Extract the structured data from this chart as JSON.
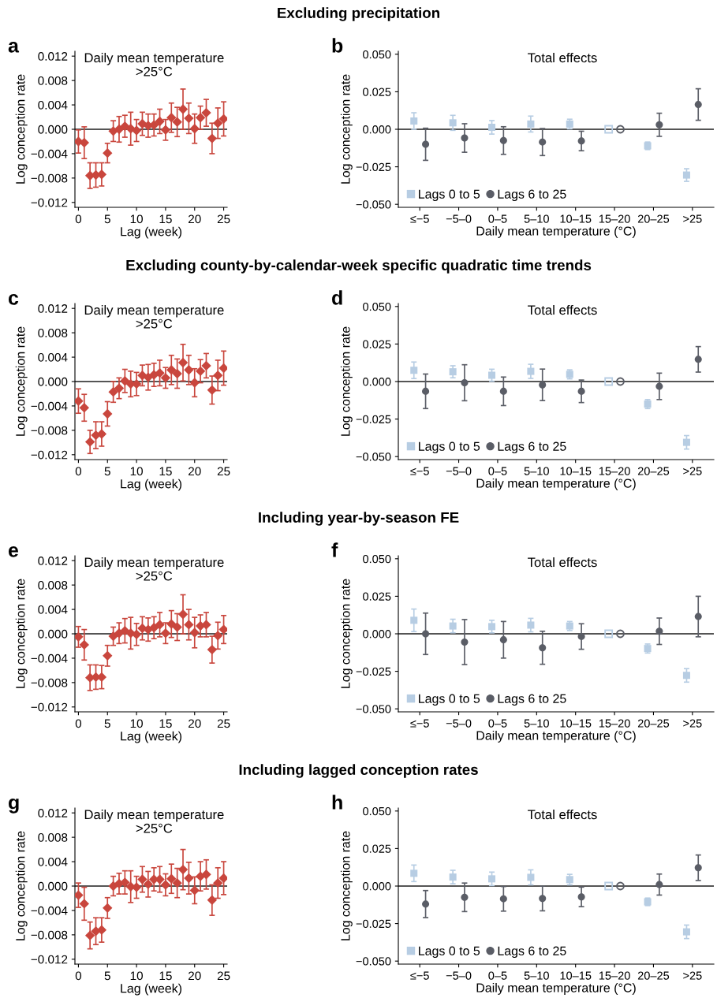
{
  "chart_data": [
    {
      "type": "scatter",
      "title": "Daily mean temperature\n>25°C",
      "xlabel": "Lag (week)",
      "ylabel": "Log conception rate",
      "annotations": [
        "a",
        "Excluding precipitation"
      ],
      "x": [
        0,
        1,
        2,
        3,
        4,
        5,
        6,
        7,
        8,
        9,
        10,
        11,
        12,
        13,
        14,
        15,
        16,
        17,
        18,
        19,
        20,
        21,
        22,
        23,
        24,
        25
      ],
      "series": [
        {
          "color": "#c9463d",
          "marker": "diamond",
          "values": [
            -0.002,
            -0.0022,
            -0.0076,
            -0.0075,
            -0.0074,
            -0.0039,
            -0.0003,
            0.0,
            0.0005,
            0.0001,
            -0.0002,
            0.0009,
            0.0006,
            0.0007,
            0.0013,
            -0.0001,
            0.0019,
            0.0012,
            0.0033,
            0.0018,
            0.0001,
            0.0019,
            0.0027,
            -0.0015,
            0.001,
            0.0017
          ],
          "errors": [
            0.0019,
            0.0026,
            0.0021,
            0.002,
            0.0019,
            0.0016,
            0.0017,
            0.0021,
            0.0018,
            0.0027,
            0.0018,
            0.0019,
            0.0019,
            0.0018,
            0.002,
            0.0017,
            0.0024,
            0.0024,
            0.0033,
            0.0025,
            0.0024,
            0.0019,
            0.0022,
            0.0025,
            0.0025,
            0.0028
          ]
        }
      ],
      "xlim": [
        -0.6,
        25.6
      ],
      "xticks": [
        0,
        5,
        10,
        15,
        20,
        25
      ],
      "ylim": [
        -0.0128,
        0.0128
      ],
      "yticks": [
        {
          "value": -0.012,
          "label": "−0.012"
        },
        {
          "value": -0.008,
          "label": "−0.008"
        },
        {
          "value": -0.004,
          "label": "−0.004"
        },
        {
          "value": 0.0,
          "label": "0.000"
        },
        {
          "value": 0.004,
          "label": "0.004"
        },
        {
          "value": 0.008,
          "label": "0.008"
        },
        {
          "value": 0.012,
          "label": "0.012"
        }
      ],
      "ref_lines": [
        {
          "axis": "y",
          "value": 0,
          "color": "#555555"
        }
      ],
      "grid": false,
      "legend": false
    },
    {
      "type": "scatter",
      "title": "Total effects",
      "xlabel": "Daily mean temperature (°C)",
      "ylabel": "Log conception rate",
      "annotations": [
        "b"
      ],
      "categories": [
        "≤−5",
        "−5–0",
        "0–5",
        "5–10",
        "10–15",
        "15–20",
        "20–25",
        ">25"
      ],
      "series": [
        {
          "name": "Lags 0 to 5",
          "color": "#b7cde3",
          "marker": "square",
          "values": [
            0.0055,
            0.0043,
            0.0013,
            0.0035,
            0.0035,
            0.0,
            -0.011,
            -0.0305
          ],
          "errors": [
            0.0055,
            0.005,
            0.0045,
            0.0053,
            0.0032,
            null,
            0.0025,
            0.0042
          ]
        },
        {
          "name": "Lags 6 to 25",
          "color": "#5a5d66",
          "marker": "circle",
          "values": [
            -0.01,
            -0.0058,
            -0.0075,
            -0.0085,
            -0.0078,
            0.0,
            0.003,
            0.0165
          ],
          "errors": [
            0.0107,
            0.0095,
            0.0092,
            0.009,
            0.0065,
            null,
            0.0077,
            0.0105
          ]
        }
      ],
      "ylim": [
        -0.052,
        0.052
      ],
      "yticks": [
        {
          "value": -0.05,
          "label": "−0.050"
        },
        {
          "value": -0.025,
          "label": "−0.025"
        },
        {
          "value": 0.0,
          "label": "0.000"
        },
        {
          "value": 0.025,
          "label": "0.025"
        },
        {
          "value": 0.05,
          "label": "0.050"
        }
      ],
      "ref_lines": [
        {
          "axis": "y",
          "value": 0,
          "color": "#555555"
        }
      ],
      "grid": false,
      "legend": "bottom left"
    },
    {
      "type": "scatter",
      "title": "Daily mean temperature\n>25°C",
      "xlabel": "Lag (week)",
      "ylabel": "Log conception rate",
      "annotations": [
        "c",
        "Excluding county-by-calendar-week specific quadratic time trends"
      ],
      "x": [
        0,
        1,
        2,
        3,
        4,
        5,
        6,
        7,
        8,
        9,
        10,
        11,
        12,
        13,
        14,
        15,
        16,
        17,
        18,
        19,
        20,
        21,
        22,
        23,
        24,
        25
      ],
      "series": [
        {
          "color": "#c9463d",
          "marker": "diamond",
          "values": [
            -0.0032,
            -0.0043,
            -0.0099,
            -0.0088,
            -0.0086,
            -0.0053,
            -0.0017,
            -0.0011,
            0.0001,
            -0.0004,
            -0.0004,
            0.001,
            0.0007,
            0.0011,
            0.0014,
            0.0006,
            0.0019,
            0.0013,
            0.0031,
            0.0019,
            -0.0002,
            0.0017,
            0.0026,
            -0.0014,
            0.001,
            0.0022
          ],
          "errors": [
            0.002,
            0.0022,
            0.0019,
            0.0022,
            0.002,
            0.002,
            0.0017,
            0.0017,
            0.0019,
            0.0021,
            0.0019,
            0.0017,
            0.0021,
            0.0019,
            0.0021,
            0.0017,
            0.0024,
            0.0024,
            0.003,
            0.0024,
            0.0023,
            0.0019,
            0.002,
            0.0023,
            0.0025,
            0.0028
          ]
        }
      ],
      "xlim": [
        -0.6,
        25.6
      ],
      "xticks": [
        0,
        5,
        10,
        15,
        20,
        25
      ],
      "ylim": [
        -0.0128,
        0.0128
      ],
      "yticks": [
        {
          "value": -0.012,
          "label": "−0.012"
        },
        {
          "value": -0.008,
          "label": "−0.008"
        },
        {
          "value": -0.004,
          "label": "−0.004"
        },
        {
          "value": 0.0,
          "label": "0.000"
        },
        {
          "value": 0.004,
          "label": "0.004"
        },
        {
          "value": 0.008,
          "label": "0.008"
        },
        {
          "value": 0.012,
          "label": "0.012"
        }
      ],
      "ref_lines": [
        {
          "axis": "y",
          "value": 0,
          "color": "#555555"
        }
      ],
      "grid": false,
      "legend": false
    },
    {
      "type": "scatter",
      "title": "Total effects",
      "xlabel": "Daily mean temperature (°C)",
      "ylabel": "Log conception rate",
      "annotations": [
        "d"
      ],
      "categories": [
        "≤−5",
        "−5–0",
        "0–5",
        "5–10",
        "10–15",
        "15–20",
        "20–25",
        ">25"
      ],
      "series": [
        {
          "name": "Lags 0 to 5",
          "color": "#b7cde3",
          "marker": "square",
          "values": [
            0.0075,
            0.0065,
            0.0042,
            0.0068,
            0.0048,
            0.0,
            -0.015,
            -0.0405
          ],
          "errors": [
            0.0055,
            0.004,
            0.004,
            0.0047,
            0.003,
            null,
            0.003,
            0.0045
          ]
        },
        {
          "name": "Lags 6 to 25",
          "color": "#5a5d66",
          "marker": "circle",
          "values": [
            -0.0065,
            -0.0008,
            -0.0065,
            -0.0022,
            -0.0065,
            0.0,
            -0.0032,
            0.0148
          ],
          "errors": [
            0.0115,
            0.012,
            0.0095,
            0.0105,
            0.0075,
            null,
            0.0088,
            0.0085
          ]
        }
      ],
      "ylim": [
        -0.052,
        0.052
      ],
      "yticks": [
        {
          "value": -0.05,
          "label": "−0.050"
        },
        {
          "value": -0.025,
          "label": "−0.025"
        },
        {
          "value": 0.0,
          "label": "0.000"
        },
        {
          "value": 0.025,
          "label": "0.025"
        },
        {
          "value": 0.05,
          "label": "0.050"
        }
      ],
      "ref_lines": [
        {
          "axis": "y",
          "value": 0,
          "color": "#555555"
        }
      ],
      "grid": false,
      "legend": "bottom left"
    },
    {
      "type": "scatter",
      "title": "Daily mean temperature\n>25°C",
      "xlabel": "Lag (week)",
      "ylabel": "Log conception rate",
      "annotations": [
        "e",
        "Including year-by-season FE"
      ],
      "x": [
        0,
        1,
        2,
        3,
        4,
        5,
        6,
        7,
        8,
        9,
        10,
        11,
        12,
        13,
        14,
        15,
        16,
        17,
        18,
        19,
        20,
        21,
        22,
        23,
        24,
        25
      ],
      "series": [
        {
          "color": "#c9463d",
          "marker": "diamond",
          "values": [
            -0.0005,
            -0.0018,
            -0.0072,
            -0.0071,
            -0.0071,
            -0.0036,
            -0.0004,
            0.0001,
            0.0005,
            0.0001,
            -0.0001,
            0.0009,
            0.0007,
            0.001,
            0.0015,
            0.0001,
            0.0016,
            0.0011,
            0.0032,
            0.0015,
            0.0002,
            0.0013,
            0.0015,
            -0.0026,
            -0.0003,
            0.0007
          ],
          "errors": [
            0.0017,
            0.0025,
            0.0021,
            0.002,
            0.0019,
            0.0017,
            0.0015,
            0.0017,
            0.002,
            0.0026,
            0.0018,
            0.0019,
            0.0019,
            0.0018,
            0.002,
            0.0017,
            0.0022,
            0.0022,
            0.0032,
            0.0025,
            0.0025,
            0.0018,
            0.002,
            0.0022,
            0.0022,
            0.0023
          ]
        }
      ],
      "xlim": [
        -0.6,
        25.6
      ],
      "xticks": [
        0,
        5,
        10,
        15,
        20,
        25
      ],
      "ylim": [
        -0.0128,
        0.0128
      ],
      "yticks": [
        {
          "value": -0.012,
          "label": "−0.012"
        },
        {
          "value": -0.008,
          "label": "−0.008"
        },
        {
          "value": -0.004,
          "label": "−0.004"
        },
        {
          "value": 0.0,
          "label": "0.000"
        },
        {
          "value": 0.004,
          "label": "0.004"
        },
        {
          "value": 0.008,
          "label": "0.008"
        },
        {
          "value": 0.012,
          "label": "0.012"
        }
      ],
      "ref_lines": [
        {
          "axis": "y",
          "value": 0,
          "color": "#555555"
        }
      ],
      "grid": false,
      "legend": false
    },
    {
      "type": "scatter",
      "title": "Total effects",
      "xlabel": "Daily mean temperature (°C)",
      "ylabel": "Log conception rate",
      "annotations": [
        "f"
      ],
      "categories": [
        "≤−5",
        "−5–0",
        "0–5",
        "5–10",
        "10–15",
        "15–20",
        "20–25",
        ">25"
      ],
      "series": [
        {
          "name": "Lags 0 to 5",
          "color": "#b7cde3",
          "marker": "square",
          "values": [
            0.009,
            0.0052,
            0.0048,
            0.0058,
            0.0052,
            0.0,
            -0.0098,
            -0.0277
          ],
          "errors": [
            0.0075,
            0.0045,
            0.0042,
            0.0045,
            0.003,
            null,
            0.003,
            0.0045
          ]
        },
        {
          "name": "Lags 6 to 25",
          "color": "#5a5d66",
          "marker": "circle",
          "values": [
            0.0,
            -0.0055,
            -0.004,
            -0.0093,
            -0.0018,
            0.0,
            0.0017,
            0.0115
          ],
          "errors": [
            0.0138,
            0.015,
            0.0122,
            0.011,
            0.0085,
            null,
            0.0088,
            0.0135
          ]
        }
      ],
      "ylim": [
        -0.052,
        0.052
      ],
      "yticks": [
        {
          "value": -0.05,
          "label": "−0.050"
        },
        {
          "value": -0.025,
          "label": "−0.025"
        },
        {
          "value": 0.0,
          "label": "0.000"
        },
        {
          "value": 0.025,
          "label": "0.025"
        },
        {
          "value": 0.05,
          "label": "0.050"
        }
      ],
      "ref_lines": [
        {
          "axis": "y",
          "value": 0,
          "color": "#555555"
        }
      ],
      "grid": false,
      "legend": "bottom left"
    },
    {
      "type": "scatter",
      "title": "Daily mean temperature\n>25°C",
      "xlabel": "Lag (week)",
      "ylabel": "Log conception rate",
      "annotations": [
        "g",
        "Including lagged conception rates"
      ],
      "x": [
        0,
        1,
        2,
        3,
        4,
        5,
        6,
        7,
        8,
        9,
        10,
        11,
        12,
        13,
        14,
        15,
        16,
        17,
        18,
        19,
        20,
        21,
        22,
        23,
        24,
        25
      ],
      "series": [
        {
          "color": "#c9463d",
          "marker": "diamond",
          "values": [
            -0.0015,
            -0.0029,
            -0.0081,
            -0.0074,
            -0.0072,
            -0.0036,
            0.0,
            0.0004,
            0.0006,
            -0.0001,
            -0.0002,
            0.0011,
            0.0003,
            0.0011,
            0.0011,
            0.0002,
            0.0012,
            0.0005,
            0.0027,
            0.0013,
            -0.0007,
            0.0016,
            0.0019,
            -0.0023,
            0.0005,
            0.0013
          ],
          "errors": [
            0.002,
            0.0027,
            0.0022,
            0.0022,
            0.002,
            0.0017,
            0.0016,
            0.0017,
            0.0019,
            0.0026,
            0.0018,
            0.0021,
            0.0021,
            0.0019,
            0.0021,
            0.0018,
            0.0024,
            0.0024,
            0.0033,
            0.0026,
            0.0022,
            0.0024,
            0.0024,
            0.0025,
            0.0025,
            0.0027
          ]
        }
      ],
      "xlim": [
        -0.6,
        25.6
      ],
      "xticks": [
        0,
        5,
        10,
        15,
        20,
        25
      ],
      "ylim": [
        -0.0128,
        0.0128
      ],
      "yticks": [
        {
          "value": -0.012,
          "label": "−0.012"
        },
        {
          "value": -0.008,
          "label": "−0.008"
        },
        {
          "value": -0.004,
          "label": "−0.004"
        },
        {
          "value": 0.0,
          "label": "0.000"
        },
        {
          "value": 0.004,
          "label": "0.004"
        },
        {
          "value": 0.008,
          "label": "0.008"
        },
        {
          "value": 0.012,
          "label": "0.012"
        }
      ],
      "ref_lines": [
        {
          "axis": "y",
          "value": 0,
          "color": "#555555"
        }
      ],
      "grid": false,
      "legend": false
    },
    {
      "type": "scatter",
      "title": "Total effects",
      "xlabel": "Daily mean temperature (°C)",
      "ylabel": "Log conception rate",
      "annotations": [
        "h"
      ],
      "categories": [
        "≤−5",
        "−5–0",
        "0–5",
        "5–10",
        "10–15",
        "15–20",
        "20–25",
        ">25"
      ],
      "series": [
        {
          "name": "Lags 0 to 5",
          "color": "#b7cde3",
          "marker": "square",
          "values": [
            0.0085,
            0.006,
            0.0048,
            0.0058,
            0.0043,
            0.0,
            -0.0105,
            -0.0305
          ],
          "errors": [
            0.0055,
            0.0045,
            0.0045,
            0.005,
            0.0035,
            null,
            0.0025,
            0.0045
          ]
        },
        {
          "name": "Lags 6 to 25",
          "color": "#5a5d66",
          "marker": "circle",
          "values": [
            -0.012,
            -0.0075,
            -0.0085,
            -0.0083,
            -0.0072,
            0.0,
            0.001,
            0.0122
          ],
          "errors": [
            0.009,
            0.0095,
            0.0082,
            0.0082,
            0.0065,
            null,
            0.007,
            0.0085
          ]
        }
      ],
      "ylim": [
        -0.052,
        0.052
      ],
      "yticks": [
        {
          "value": -0.05,
          "label": "−0.050"
        },
        {
          "value": -0.025,
          "label": "−0.025"
        },
        {
          "value": 0.0,
          "label": "0.000"
        },
        {
          "value": 0.025,
          "label": "0.025"
        },
        {
          "value": 0.05,
          "label": "0.050"
        }
      ],
      "ref_lines": [
        {
          "axis": "y",
          "value": 0,
          "color": "#555555"
        }
      ],
      "grid": false,
      "legend": "bottom left"
    }
  ]
}
